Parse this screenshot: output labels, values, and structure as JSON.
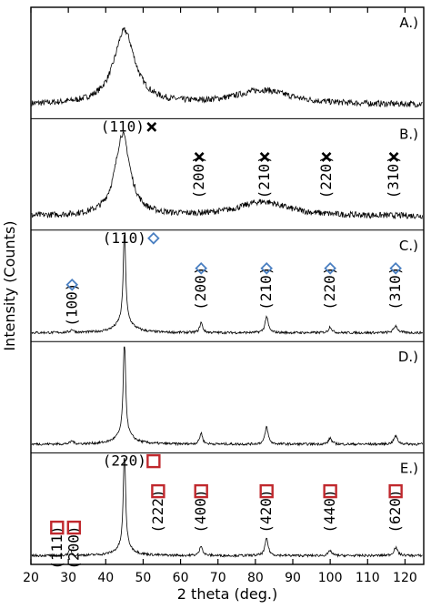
{
  "chart_data": {
    "type": "line",
    "xlabel": "2 theta (deg.)",
    "ylabel": "Intensity (Counts)",
    "xlim": [
      20,
      125
    ],
    "xticks": [
      20,
      30,
      40,
      50,
      60,
      70,
      80,
      90,
      100,
      110,
      120
    ],
    "panels": [
      {
        "label": "A.)",
        "peaks": [
          {
            "x": 45,
            "height": 0.72,
            "width": 3.4
          },
          {
            "x": 82,
            "height": 0.14,
            "width": 9
          }
        ],
        "base": 0.1,
        "noise": 0.03,
        "indexing": []
      },
      {
        "label": "B.)",
        "peaks": [
          {
            "x": 44.5,
            "height": 0.8,
            "width": 2.4
          },
          {
            "x": 82,
            "height": 0.14,
            "width": 8
          }
        ],
        "base": 0.1,
        "noise": 0.03,
        "marker_color": "#000000",
        "indexing": [
          {
            "hkl": "(110)",
            "x": 44.5,
            "marker": "cross",
            "horizontal": true
          },
          {
            "hkl": "(200)",
            "x": 65,
            "marker": "cross"
          },
          {
            "hkl": "(210)",
            "x": 82.5,
            "marker": "cross"
          },
          {
            "hkl": "(220)",
            "x": 99,
            "marker": "cross"
          },
          {
            "hkl": "(310)",
            "x": 117,
            "marker": "cross"
          }
        ]
      },
      {
        "label": "C.)",
        "peaks": [
          {
            "x": 45,
            "height": 0.95,
            "width": 0.35
          },
          {
            "x": 45,
            "height": 0.12,
            "width": 2.5
          },
          {
            "x": 31,
            "height": 0.03,
            "width": 0.5
          },
          {
            "x": 65.5,
            "height": 0.1,
            "width": 0.45
          },
          {
            "x": 83,
            "height": 0.16,
            "width": 0.5
          },
          {
            "x": 100,
            "height": 0.06,
            "width": 0.5
          },
          {
            "x": 117.5,
            "height": 0.07,
            "width": 0.6
          }
        ],
        "base": 0.05,
        "noise": 0.012,
        "marker_color": "#4a7fc1",
        "indexing": [
          {
            "hkl": "(100)",
            "x": 31,
            "marker": "diamond"
          },
          {
            "hkl": "(110)",
            "x": 45,
            "marker": "diamond",
            "horizontal": true
          },
          {
            "hkl": "(200)",
            "x": 65.5,
            "marker": "diamond"
          },
          {
            "hkl": "(210)",
            "x": 83,
            "marker": "diamond"
          },
          {
            "hkl": "(220)",
            "x": 100,
            "marker": "diamond"
          },
          {
            "hkl": "(310)",
            "x": 117.5,
            "marker": "diamond"
          }
        ]
      },
      {
        "label": "D.)",
        "peaks": [
          {
            "x": 45,
            "height": 1.0,
            "width": 0.35
          },
          {
            "x": 45,
            "height": 0.1,
            "width": 2.5
          },
          {
            "x": 31,
            "height": 0.03,
            "width": 0.5
          },
          {
            "x": 65.5,
            "height": 0.11,
            "width": 0.45
          },
          {
            "x": 83,
            "height": 0.17,
            "width": 0.5
          },
          {
            "x": 100,
            "height": 0.06,
            "width": 0.5
          },
          {
            "x": 117.5,
            "height": 0.08,
            "width": 0.6
          }
        ],
        "base": 0.05,
        "noise": 0.012,
        "indexing": []
      },
      {
        "label": "E.)",
        "peaks": [
          {
            "x": 45,
            "height": 1.0,
            "width": 0.35
          },
          {
            "x": 45,
            "height": 0.08,
            "width": 2.5
          },
          {
            "x": 30.5,
            "height": 0.05,
            "width": 0.5
          },
          {
            "x": 65.5,
            "height": 0.1,
            "width": 0.45
          },
          {
            "x": 83,
            "height": 0.17,
            "width": 0.5
          },
          {
            "x": 100,
            "height": 0.05,
            "width": 0.5
          },
          {
            "x": 117.5,
            "height": 0.08,
            "width": 0.6
          }
        ],
        "base": 0.05,
        "noise": 0.012,
        "marker_color": "#c0282d",
        "indexing": [
          {
            "hkl": "(111)",
            "x": 27,
            "marker": "square"
          },
          {
            "hkl": "(200)",
            "x": 31.5,
            "marker": "square"
          },
          {
            "hkl": "(220)",
            "x": 45,
            "marker": "square",
            "horizontal": true
          },
          {
            "hkl": "(222)",
            "x": 54,
            "marker": "square"
          },
          {
            "hkl": "(400)",
            "x": 65.5,
            "marker": "square"
          },
          {
            "hkl": "(420)",
            "x": 83,
            "marker": "square"
          },
          {
            "hkl": "(440)",
            "x": 100,
            "marker": "square"
          },
          {
            "hkl": "(620)",
            "x": 117.5,
            "marker": "square"
          }
        ]
      }
    ]
  }
}
